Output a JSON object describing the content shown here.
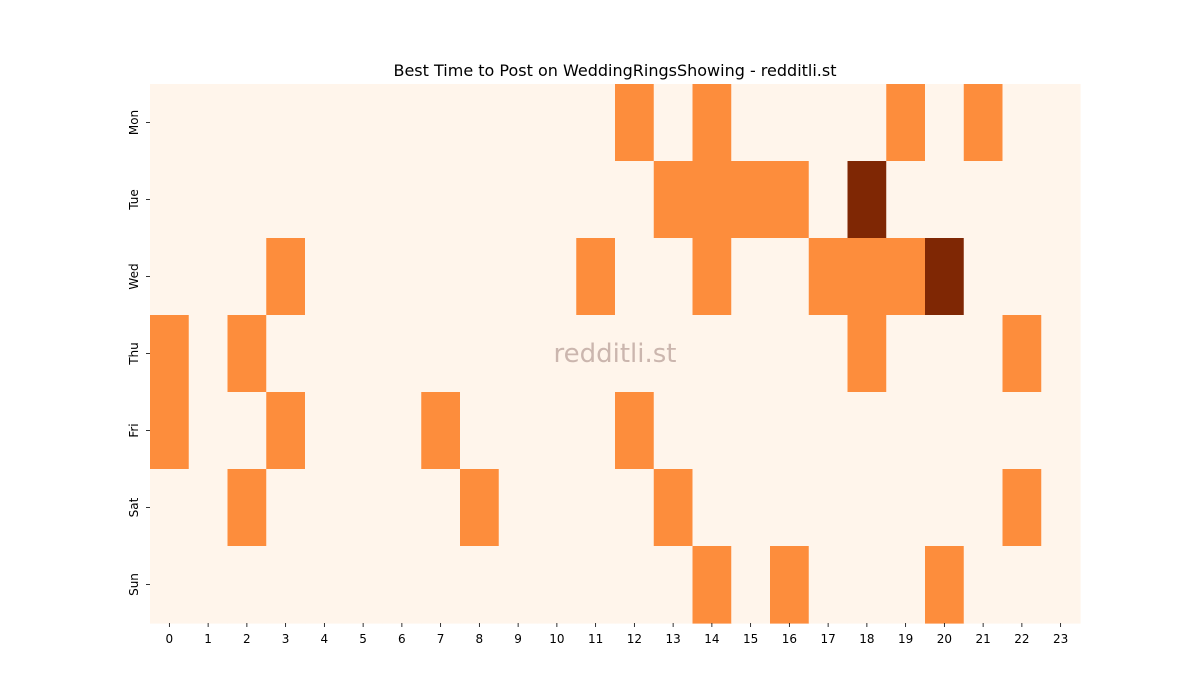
{
  "chart_data": {
    "type": "heatmap",
    "title": "Best Time to Post on WeddingRingsShowing - redditli.st",
    "watermark": "redditli.st",
    "xlabel": "",
    "ylabel": "",
    "x_categories": [
      "0",
      "1",
      "2",
      "3",
      "4",
      "5",
      "6",
      "7",
      "8",
      "9",
      "10",
      "11",
      "12",
      "13",
      "14",
      "15",
      "16",
      "17",
      "18",
      "19",
      "20",
      "21",
      "22",
      "23"
    ],
    "y_categories": [
      "Mon",
      "Tue",
      "Wed",
      "Thu",
      "Fri",
      "Sat",
      "Sun"
    ],
    "colormap": "Oranges",
    "colors": {
      "0": "#fff5eb",
      "1": "#fd8d3c",
      "2": "#7f2704"
    },
    "values": [
      [
        0,
        0,
        0,
        0,
        0,
        0,
        0,
        0,
        0,
        0,
        0,
        0,
        1,
        0,
        1,
        0,
        0,
        0,
        0,
        1,
        0,
        1,
        0,
        0
      ],
      [
        0,
        0,
        0,
        0,
        0,
        0,
        0,
        0,
        0,
        0,
        0,
        0,
        0,
        1,
        1,
        1,
        1,
        0,
        2,
        0,
        0,
        0,
        0,
        0
      ],
      [
        0,
        0,
        0,
        1,
        0,
        0,
        0,
        0,
        0,
        0,
        0,
        1,
        0,
        0,
        1,
        0,
        0,
        1,
        1,
        1,
        2,
        0,
        0,
        0
      ],
      [
        1,
        0,
        1,
        0,
        0,
        0,
        0,
        0,
        0,
        0,
        0,
        0,
        0,
        0,
        0,
        0,
        0,
        0,
        1,
        0,
        0,
        0,
        1,
        0
      ],
      [
        1,
        0,
        0,
        1,
        0,
        0,
        0,
        1,
        0,
        0,
        0,
        0,
        1,
        0,
        0,
        0,
        0,
        0,
        0,
        0,
        0,
        0,
        0,
        0
      ],
      [
        0,
        0,
        1,
        0,
        0,
        0,
        0,
        0,
        1,
        0,
        0,
        0,
        0,
        1,
        0,
        0,
        0,
        0,
        0,
        0,
        0,
        0,
        1,
        0
      ],
      [
        0,
        0,
        0,
        0,
        0,
        0,
        0,
        0,
        0,
        0,
        0,
        0,
        0,
        0,
        1,
        0,
        1,
        0,
        0,
        0,
        1,
        0,
        0,
        0
      ]
    ]
  }
}
